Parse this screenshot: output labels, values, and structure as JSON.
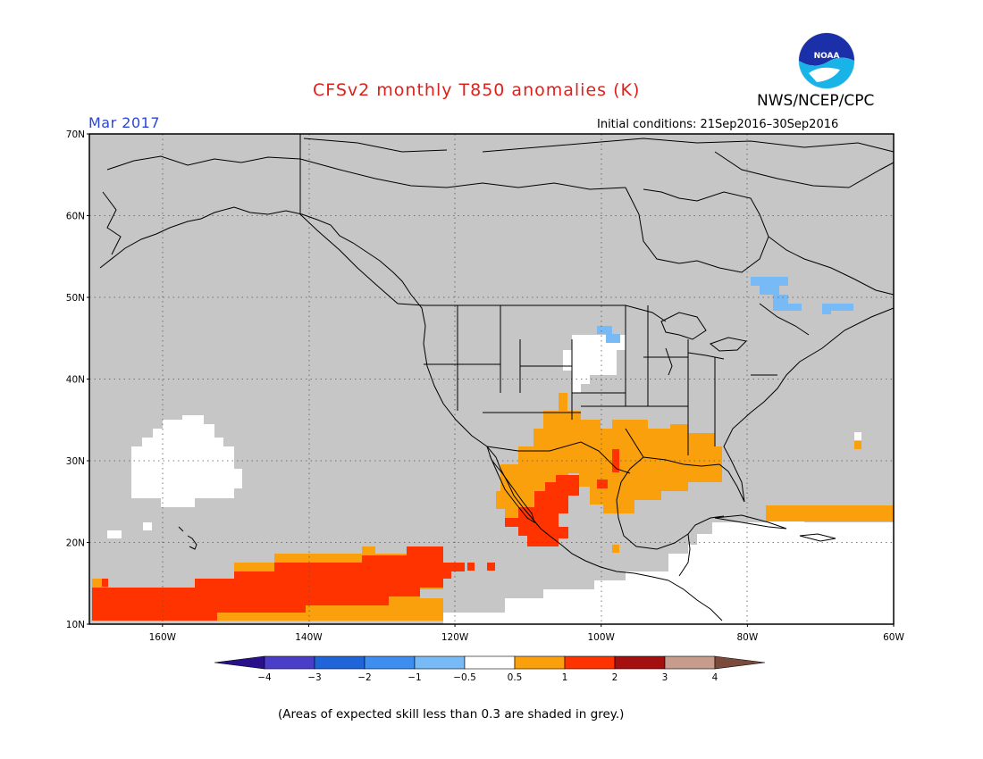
{
  "header": {
    "title": "CFSv2 monthly T850 anomalies (K)",
    "valid_month": "Mar 2017",
    "agency": "NWS/NCEP/CPC",
    "initial_conditions": "Initial conditions: 21Sep2016–30Sep2016",
    "logo_text": "NOAA"
  },
  "map": {
    "lat_range": [
      10,
      70
    ],
    "lon_range": [
      -170,
      -60
    ],
    "lat_ticks": [
      {
        "value": 70,
        "label": "70N"
      },
      {
        "value": 60,
        "label": "60N"
      },
      {
        "value": 50,
        "label": "50N"
      },
      {
        "value": 40,
        "label": "40N"
      },
      {
        "value": 30,
        "label": "30N"
      },
      {
        "value": 20,
        "label": "20N"
      },
      {
        "value": 10,
        "label": "10N"
      }
    ],
    "lon_ticks": [
      {
        "value": -160,
        "label": "160W"
      },
      {
        "value": -140,
        "label": "140W"
      },
      {
        "value": -120,
        "label": "120W"
      },
      {
        "value": -100,
        "label": "100W"
      },
      {
        "value": -80,
        "label": "80W"
      },
      {
        "value": -60,
        "label": "60W"
      }
    ],
    "low_skill_color": "#c6c6c6",
    "regions": [
      {
        "name": "subtropical-north-pacific",
        "category": "neutral"
      },
      {
        "name": "pacific-west-of-mexico-warm",
        "category": "0.5 to 1"
      },
      {
        "name": "pacific-itcz-warm",
        "category": "1 to 2"
      },
      {
        "name": "southern-us-warm",
        "category": "0.5 to 1"
      },
      {
        "name": "northwest-mexico-warm",
        "category": "1 to 2"
      },
      {
        "name": "caribbean-neutral",
        "category": "neutral"
      },
      {
        "name": "quebec-cool",
        "category": "-1 to -0.5"
      },
      {
        "name": "northern-plains-neutral",
        "category": "neutral"
      }
    ]
  },
  "colorbar": {
    "colors": [
      "#2a0f8a",
      "#4a3ec8",
      "#1f64d8",
      "#3d8ef0",
      "#78baf5",
      "#ffffff",
      "#f9a00c",
      "#ff3300",
      "#a40f10",
      "#c69c8c",
      "#7b4a3a"
    ],
    "tick_labels": [
      "−4",
      "−3",
      "−2",
      "−1",
      "−0.5",
      "0.5",
      "1",
      "2",
      "3",
      "4"
    ]
  },
  "footnote": "(Areas of expected skill less than 0.3 are shaded in grey.)"
}
